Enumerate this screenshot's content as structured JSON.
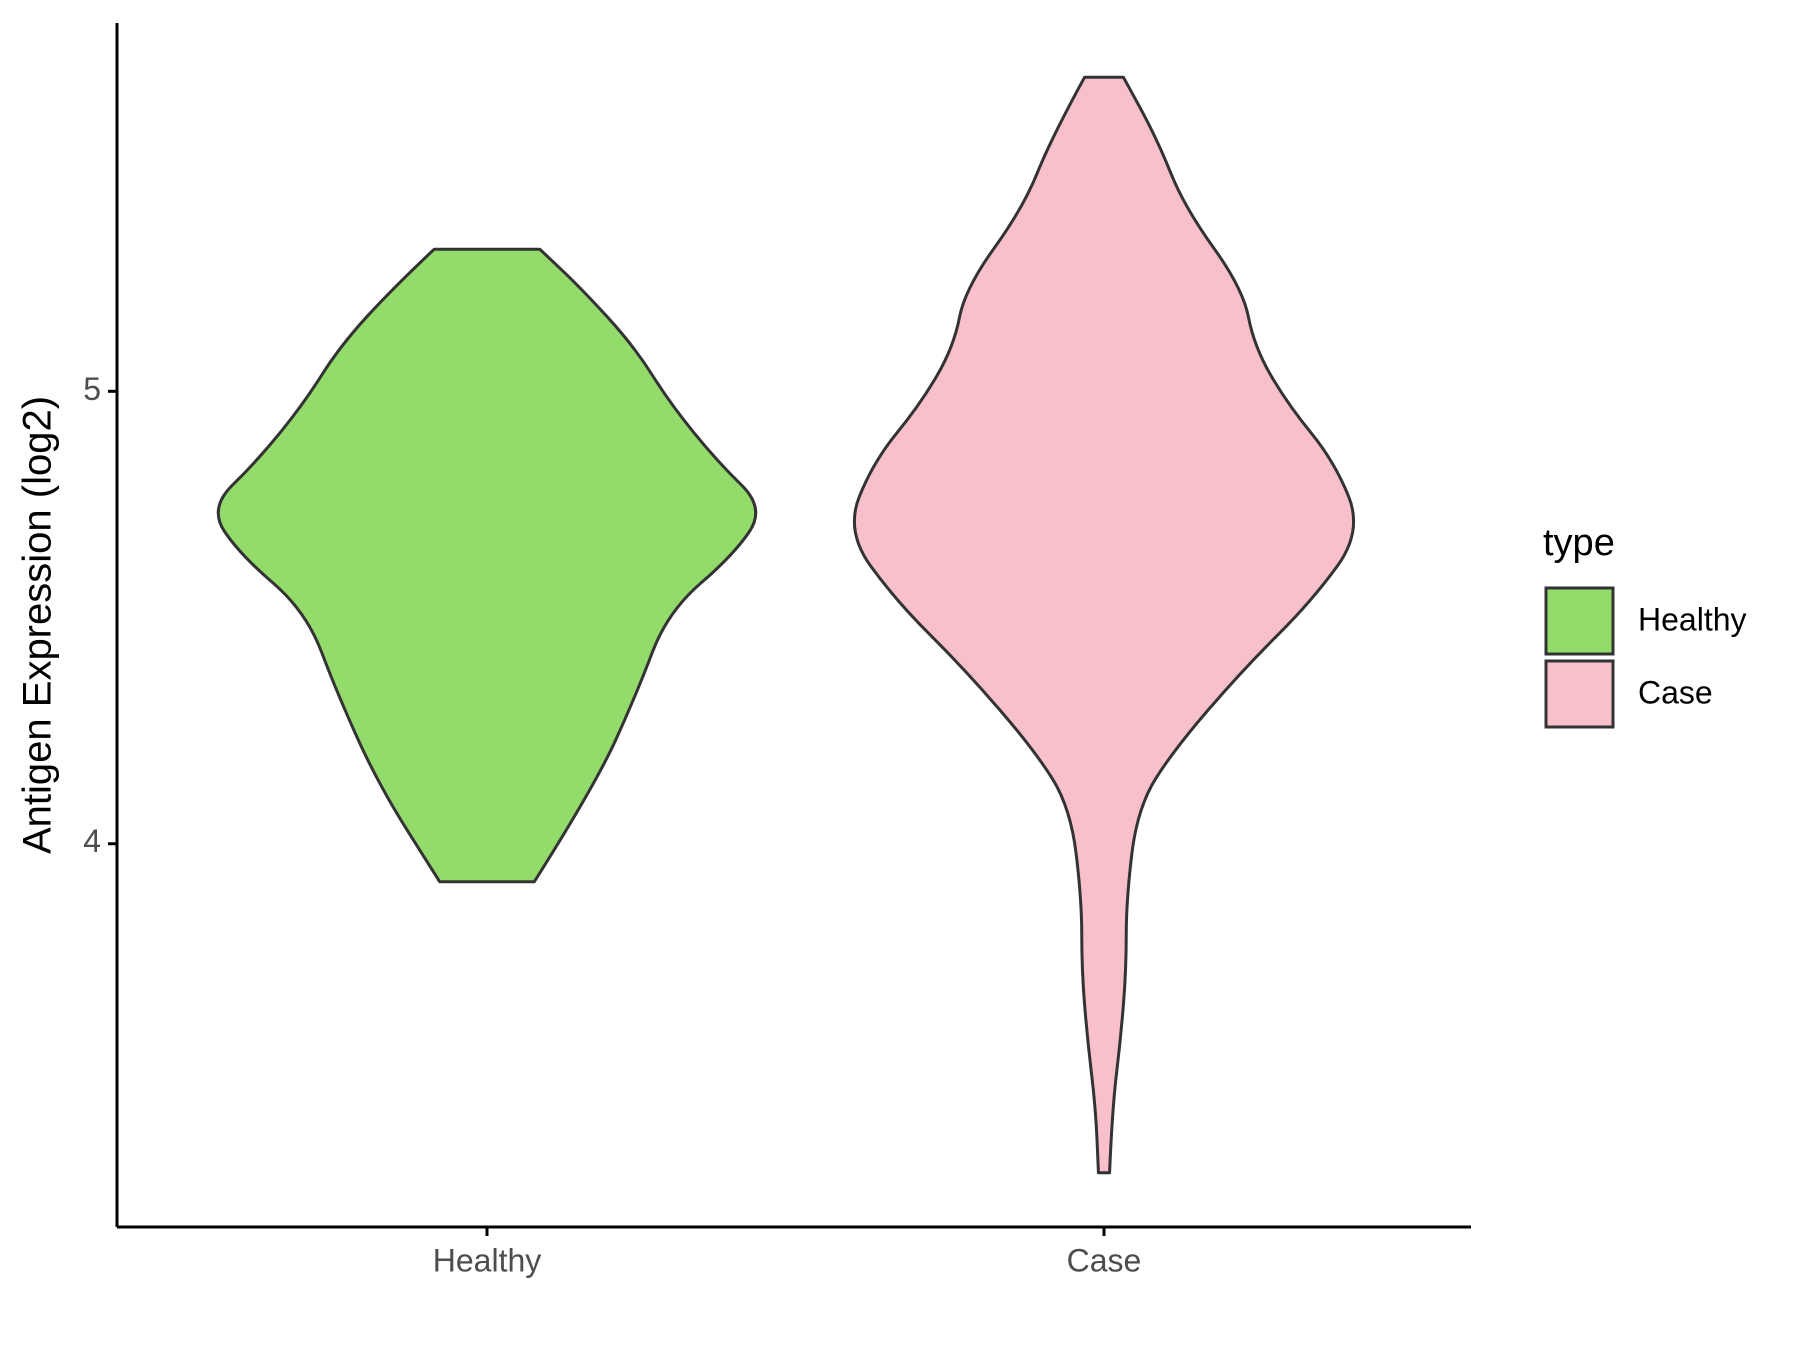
{
  "chart_data": {
    "type": "violin",
    "y_label": "Antigen Expression (log2)",
    "categories": [
      "Healthy",
      "Case"
    ],
    "legend_title": "type",
    "legend": "right",
    "series": [
      {
        "name": "Healthy",
        "color": "#93dc6b",
        "y": [
          5.314,
          5.227,
          5.099,
          4.972,
          4.844,
          4.742,
          4.64,
          4.513,
          4.334,
          4.13,
          3.916
        ],
        "density": [
          0.19,
          0.34,
          0.53,
          0.66,
          0.83,
          1.0,
          0.89,
          0.65,
          0.54,
          0.39,
          0.17
        ]
      },
      {
        "name": "Case",
        "color": "#f8c0cb",
        "y": [
          5.694,
          5.559,
          5.406,
          5.227,
          5.099,
          4.972,
          4.844,
          4.691,
          4.538,
          4.385,
          4.207,
          4.079,
          3.875,
          3.722,
          3.569,
          3.416,
          3.273
        ],
        "density": [
          0.07,
          0.19,
          0.29,
          0.5,
          0.54,
          0.66,
          0.83,
          0.93,
          0.75,
          0.5,
          0.25,
          0.12,
          0.08,
          0.08,
          0.06,
          0.03,
          0.02
        ]
      }
    ],
    "ylim": [
      3.153,
      5.814
    ],
    "yticks": [
      4,
      5
    ],
    "grid": false
  }
}
